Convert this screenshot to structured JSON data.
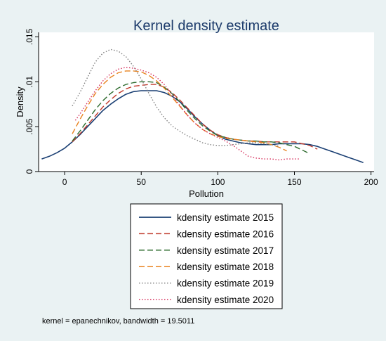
{
  "chart_data": {
    "type": "line",
    "title": "Kernel density estimate",
    "xlabel": "Pollution",
    "ylabel": "Density",
    "xlim": [
      -17,
      202
    ],
    "ylim": [
      0,
      0.0155
    ],
    "xticks": [
      0,
      50,
      100,
      150,
      200
    ],
    "yticks": [
      0,
      0.005,
      0.01,
      0.015
    ],
    "ytick_labels": [
      "0",
      ".005",
      ".01",
      ".015"
    ],
    "grid": false,
    "legend_position": "bottom",
    "note": "kernel = epanechnikov, bandwidth = 19.5011",
    "series": [
      {
        "name": "kdensity estimate 2015",
        "color": "#1a3f73",
        "dash": "solid",
        "x": [
          -15,
          -10,
          -5,
          0,
          5,
          10,
          15,
          20,
          25,
          30,
          35,
          40,
          45,
          50,
          55,
          60,
          65,
          70,
          75,
          80,
          85,
          90,
          95,
          100,
          105,
          110,
          115,
          120,
          125,
          130,
          135,
          140,
          145,
          150,
          155,
          160,
          165,
          170,
          175,
          180,
          185,
          190,
          195
        ],
        "y": [
          0.0014,
          0.0017,
          0.0021,
          0.0026,
          0.0033,
          0.0041,
          0.005,
          0.0059,
          0.0068,
          0.0075,
          0.0081,
          0.0086,
          0.0089,
          0.009,
          0.009,
          0.009,
          0.0088,
          0.0084,
          0.0078,
          0.007,
          0.0061,
          0.0053,
          0.0046,
          0.004,
          0.0036,
          0.0034,
          0.0032,
          0.0031,
          0.003,
          0.003,
          0.003,
          0.0031,
          0.0031,
          0.0031,
          0.0031,
          0.003,
          0.0028,
          0.0025,
          0.0022,
          0.0019,
          0.0016,
          0.0013,
          0.001
        ]
      },
      {
        "name": "kdensity estimate 2016",
        "color": "#c0392b",
        "dash": "long-dash",
        "x": [
          5,
          10,
          15,
          20,
          25,
          30,
          35,
          40,
          45,
          50,
          55,
          60,
          65,
          70,
          75,
          80,
          85,
          90,
          95,
          100,
          105,
          110,
          115,
          120,
          125,
          130,
          135,
          140,
          145,
          150,
          155,
          160,
          165
        ],
        "y": [
          0.0033,
          0.0042,
          0.0052,
          0.0062,
          0.0072,
          0.008,
          0.0087,
          0.0092,
          0.0095,
          0.0096,
          0.0097,
          0.0097,
          0.0094,
          0.0088,
          0.008,
          0.0071,
          0.0062,
          0.0053,
          0.0046,
          0.0041,
          0.0038,
          0.0036,
          0.0035,
          0.0034,
          0.0034,
          0.0033,
          0.0033,
          0.0033,
          0.0033,
          0.0033,
          0.0031,
          0.0029,
          0.0025
        ]
      },
      {
        "name": "kdensity estimate 2017",
        "color": "#2e6b2e",
        "dash": "long-dash",
        "x": [
          5,
          10,
          15,
          20,
          25,
          30,
          35,
          40,
          45,
          50,
          55,
          60,
          65,
          70,
          75,
          80,
          85,
          90,
          95,
          100,
          105,
          110,
          115,
          120,
          125,
          130,
          135,
          140,
          145,
          150,
          155,
          160
        ],
        "y": [
          0.0034,
          0.0045,
          0.0057,
          0.0069,
          0.0079,
          0.0087,
          0.0093,
          0.0097,
          0.0099,
          0.01,
          0.01,
          0.0099,
          0.0094,
          0.0087,
          0.0078,
          0.0068,
          0.0059,
          0.0051,
          0.0045,
          0.004,
          0.0038,
          0.0036,
          0.0035,
          0.0034,
          0.0034,
          0.0033,
          0.0033,
          0.0032,
          0.003,
          0.0028,
          0.0024,
          0.002
        ]
      },
      {
        "name": "kdensity estimate 2018",
        "color": "#e8821e",
        "dash": "long-dash",
        "x": [
          5,
          10,
          15,
          20,
          25,
          30,
          35,
          40,
          45,
          50,
          55,
          60,
          65,
          70,
          75,
          80,
          85,
          90,
          95,
          100,
          105,
          110,
          115,
          120,
          125,
          130,
          135,
          140,
          145
        ],
        "y": [
          0.0042,
          0.0058,
          0.0073,
          0.0087,
          0.0097,
          0.0105,
          0.011,
          0.0112,
          0.0112,
          0.0111,
          0.0107,
          0.0101,
          0.0093,
          0.0083,
          0.0073,
          0.0063,
          0.0054,
          0.0047,
          0.0042,
          0.0039,
          0.0037,
          0.0036,
          0.0035,
          0.0034,
          0.0033,
          0.0032,
          0.003,
          0.0027,
          0.0023
        ]
      },
      {
        "name": "kdensity estimate 2019",
        "color": "#808080",
        "dash": "dot",
        "x": [
          5,
          10,
          15,
          20,
          25,
          30,
          35,
          40,
          45,
          50,
          55,
          60,
          65,
          70,
          75,
          80,
          85,
          90,
          95,
          100,
          105,
          110,
          115,
          120,
          125,
          130,
          135,
          140
        ],
        "y": [
          0.0073,
          0.0088,
          0.0105,
          0.0122,
          0.0132,
          0.0136,
          0.0134,
          0.0128,
          0.0117,
          0.0103,
          0.0087,
          0.0072,
          0.006,
          0.0051,
          0.0045,
          0.004,
          0.0036,
          0.0032,
          0.003,
          0.0029,
          0.0029,
          0.003,
          0.0031,
          0.0032,
          0.0032,
          0.0031,
          0.003,
          0.0028
        ]
      },
      {
        "name": "kdensity estimate 2020",
        "color": "#d62d5a",
        "dash": "dot",
        "x": [
          7,
          10,
          15,
          20,
          25,
          30,
          35,
          40,
          45,
          50,
          55,
          60,
          65,
          70,
          75,
          80,
          85,
          90,
          95,
          100,
          105,
          110,
          115,
          120,
          125,
          130,
          135,
          140,
          145,
          150,
          153
        ],
        "y": [
          0.0057,
          0.0064,
          0.0077,
          0.009,
          0.0101,
          0.0109,
          0.0114,
          0.0116,
          0.0115,
          0.0113,
          0.011,
          0.0105,
          0.0097,
          0.0086,
          0.0074,
          0.0063,
          0.0054,
          0.0047,
          0.0042,
          0.0038,
          0.0034,
          0.0029,
          0.0023,
          0.0017,
          0.0015,
          0.0014,
          0.0014,
          0.0013,
          0.0014,
          0.0014,
          0.0014
        ]
      }
    ]
  }
}
